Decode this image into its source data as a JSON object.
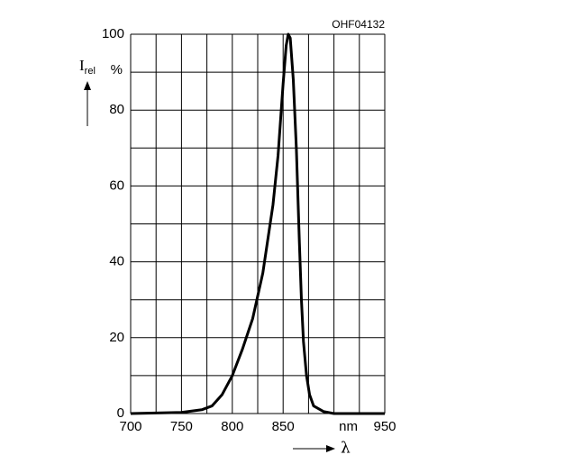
{
  "chart_data": {
    "type": "line",
    "code": "OHF04132",
    "y_label": "I",
    "y_label_sub": "rel",
    "x_label": "λ",
    "x": [
      700,
      750,
      770,
      780,
      790,
      800,
      810,
      820,
      830,
      840,
      845,
      850,
      853,
      855,
      857,
      860,
      863,
      866,
      868,
      870,
      873,
      876,
      880,
      890,
      900,
      950
    ],
    "series": [
      {
        "color": "#000000",
        "values": [
          0,
          0.3,
          1,
          2,
          5,
          10,
          17,
          25,
          37,
          55,
          68,
          87,
          97,
          100,
          99,
          88,
          70,
          45,
          30,
          19,
          10,
          5,
          2,
          0.5,
          0,
          0
        ]
      }
    ],
    "xlim": [
      700,
      950
    ],
    "ylim": [
      0,
      100
    ],
    "xticks": [
      700,
      750,
      800,
      850,
      {
        "value": 900,
        "label": "nm"
      },
      950
    ],
    "yticks": [
      0,
      20,
      40,
      60,
      80,
      {
        "value": 90,
        "label": "%"
      },
      100
    ],
    "x_grid": [
      700,
      725,
      750,
      775,
      800,
      825,
      850,
      875,
      900,
      925,
      950
    ],
    "y_grid": [
      0,
      10,
      20,
      30,
      40,
      50,
      60,
      70,
      80,
      90,
      100
    ],
    "grid": true
  }
}
